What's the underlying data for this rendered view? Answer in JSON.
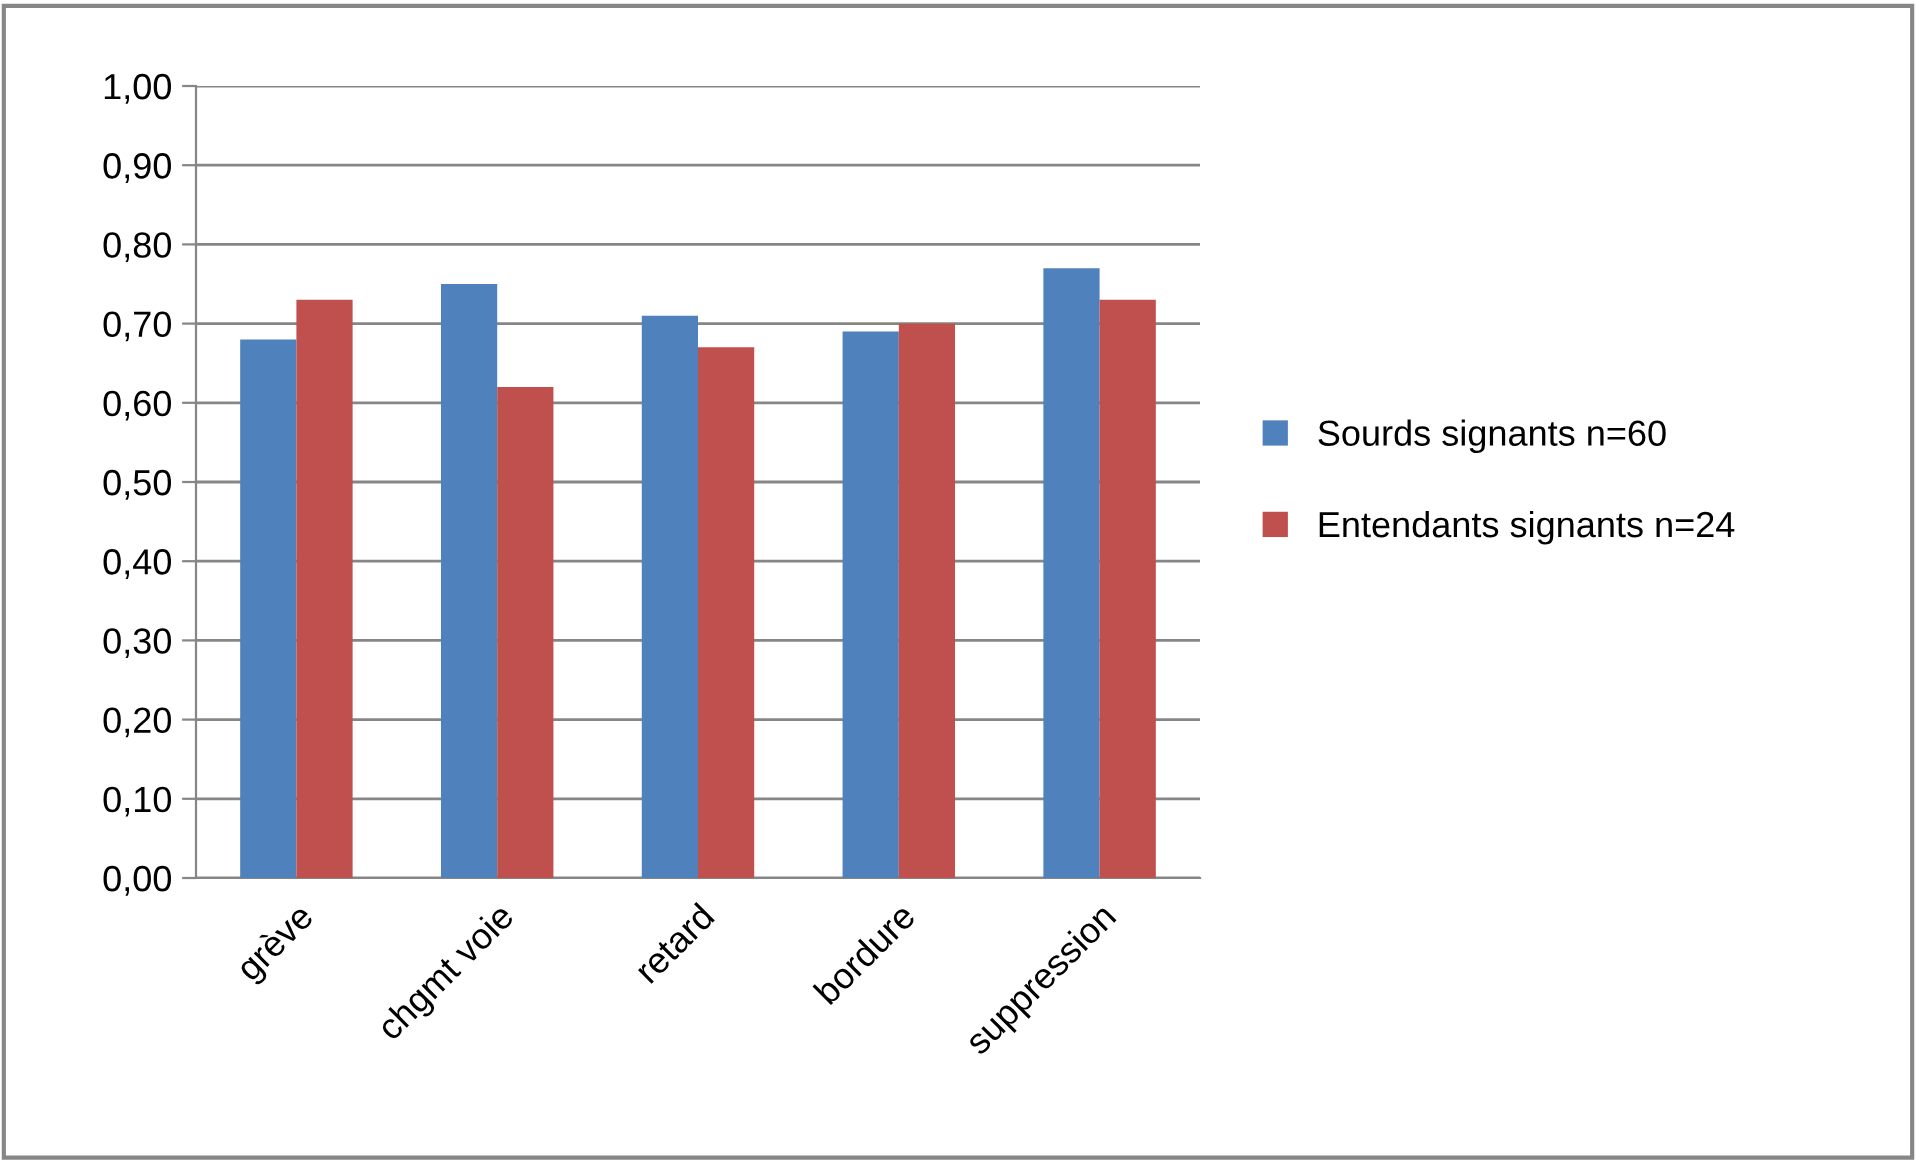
{
  "chart_data": {
    "type": "bar",
    "categories": [
      "grève",
      "chgmt voie",
      "retard",
      "bordure",
      "suppression"
    ],
    "series": [
      {
        "name": "Sourds signants n=60",
        "color": "#4f81bd",
        "values": [
          0.68,
          0.75,
          0.71,
          0.69,
          0.77
        ]
      },
      {
        "name": "Entendants signants n=24",
        "color": "#c0504d",
        "values": [
          0.73,
          0.62,
          0.67,
          0.7,
          0.73
        ]
      }
    ],
    "ylim": [
      0,
      1
    ],
    "yticks": [
      {
        "value": 0,
        "label": "0,00"
      },
      {
        "value": 0.1,
        "label": "0,10"
      },
      {
        "value": 0.2,
        "label": "0,20"
      },
      {
        "value": 0.3,
        "label": "0,30"
      },
      {
        "value": 0.4,
        "label": "0,40"
      },
      {
        "value": 0.5,
        "label": "0,50"
      },
      {
        "value": 0.6,
        "label": "0,60"
      },
      {
        "value": 0.7,
        "label": "0,70"
      },
      {
        "value": 0.8,
        "label": "0,80"
      },
      {
        "value": 0.9,
        "label": "0,90"
      },
      {
        "value": 1,
        "label": "1,00"
      }
    ],
    "grid": "y",
    "legend": "right"
  }
}
